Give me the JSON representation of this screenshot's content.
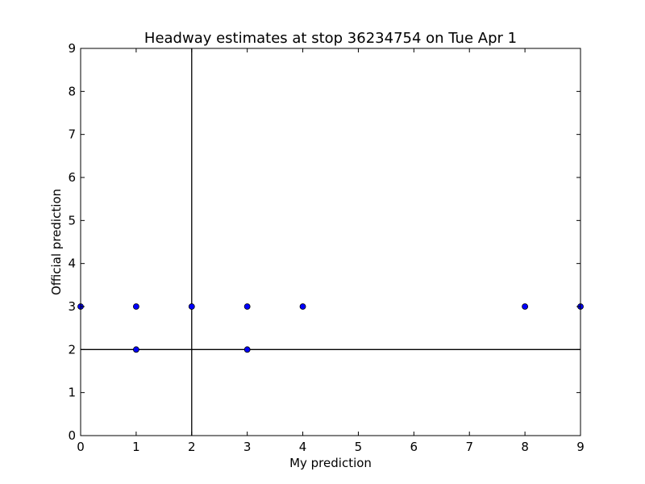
{
  "chart_data": {
    "type": "scatter",
    "title": "Headway estimates at stop 36234754 on Tue Apr 1",
    "xlabel": "My prediction",
    "ylabel": "Official prediction",
    "xlim": [
      0,
      9
    ],
    "ylim": [
      0,
      9
    ],
    "xticks": [
      0,
      1,
      2,
      3,
      4,
      5,
      6,
      7,
      8,
      9
    ],
    "yticks": [
      0,
      1,
      2,
      3,
      4,
      5,
      6,
      7,
      8,
      9
    ],
    "grid": false,
    "reference_lines": {
      "vertical_x": 2,
      "horizontal_y": 2
    },
    "marker_color": "#0000ff",
    "marker_edge_color": "#000000",
    "points": [
      {
        "x": 0,
        "y": 3
      },
      {
        "x": 1,
        "y": 3
      },
      {
        "x": 1,
        "y": 2
      },
      {
        "x": 2,
        "y": 3
      },
      {
        "x": 3,
        "y": 3
      },
      {
        "x": 3,
        "y": 2
      },
      {
        "x": 4,
        "y": 3
      },
      {
        "x": 8,
        "y": 3
      },
      {
        "x": 9,
        "y": 3
      }
    ]
  }
}
